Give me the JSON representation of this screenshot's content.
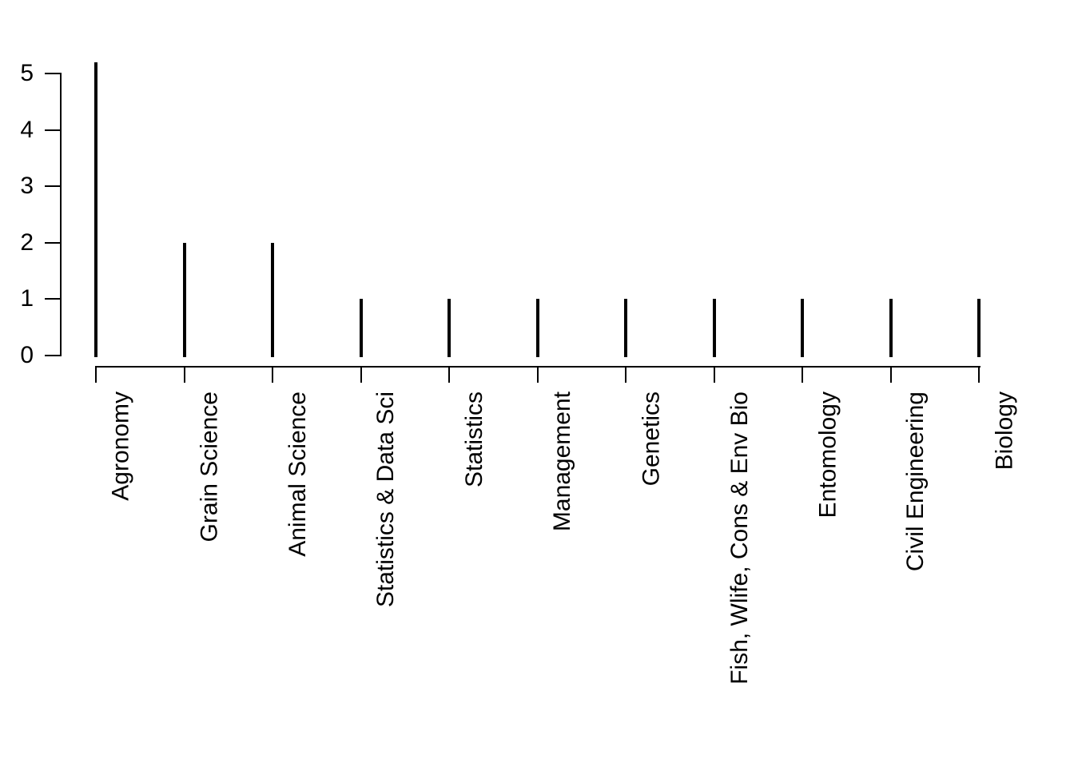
{
  "chart_data": {
    "type": "bar",
    "subtype": "spike",
    "title": "",
    "xlabel": "",
    "ylabel": "",
    "categories": [
      "Agronomy",
      "Grain Science",
      "Animal Science",
      "Statistics & Data Sci",
      "Statistics",
      "Management",
      "Genetics",
      "Fish, Wlife, Cons & Env Bio",
      "Entomology",
      "Civil Engineering",
      "Biology"
    ],
    "values": [
      5.2,
      2,
      2,
      1,
      1,
      1,
      1,
      1,
      1,
      1,
      1
    ],
    "ytick_labels": [
      "0",
      "1",
      "2",
      "3",
      "4",
      "5"
    ],
    "ytick_values": [
      0,
      1,
      2,
      3,
      4,
      5
    ],
    "ylim": [
      0,
      5.2
    ],
    "grid": "off",
    "legend": "none",
    "colors": {
      "line": "#000000",
      "text": "#000000",
      "background": "#ffffff"
    }
  }
}
